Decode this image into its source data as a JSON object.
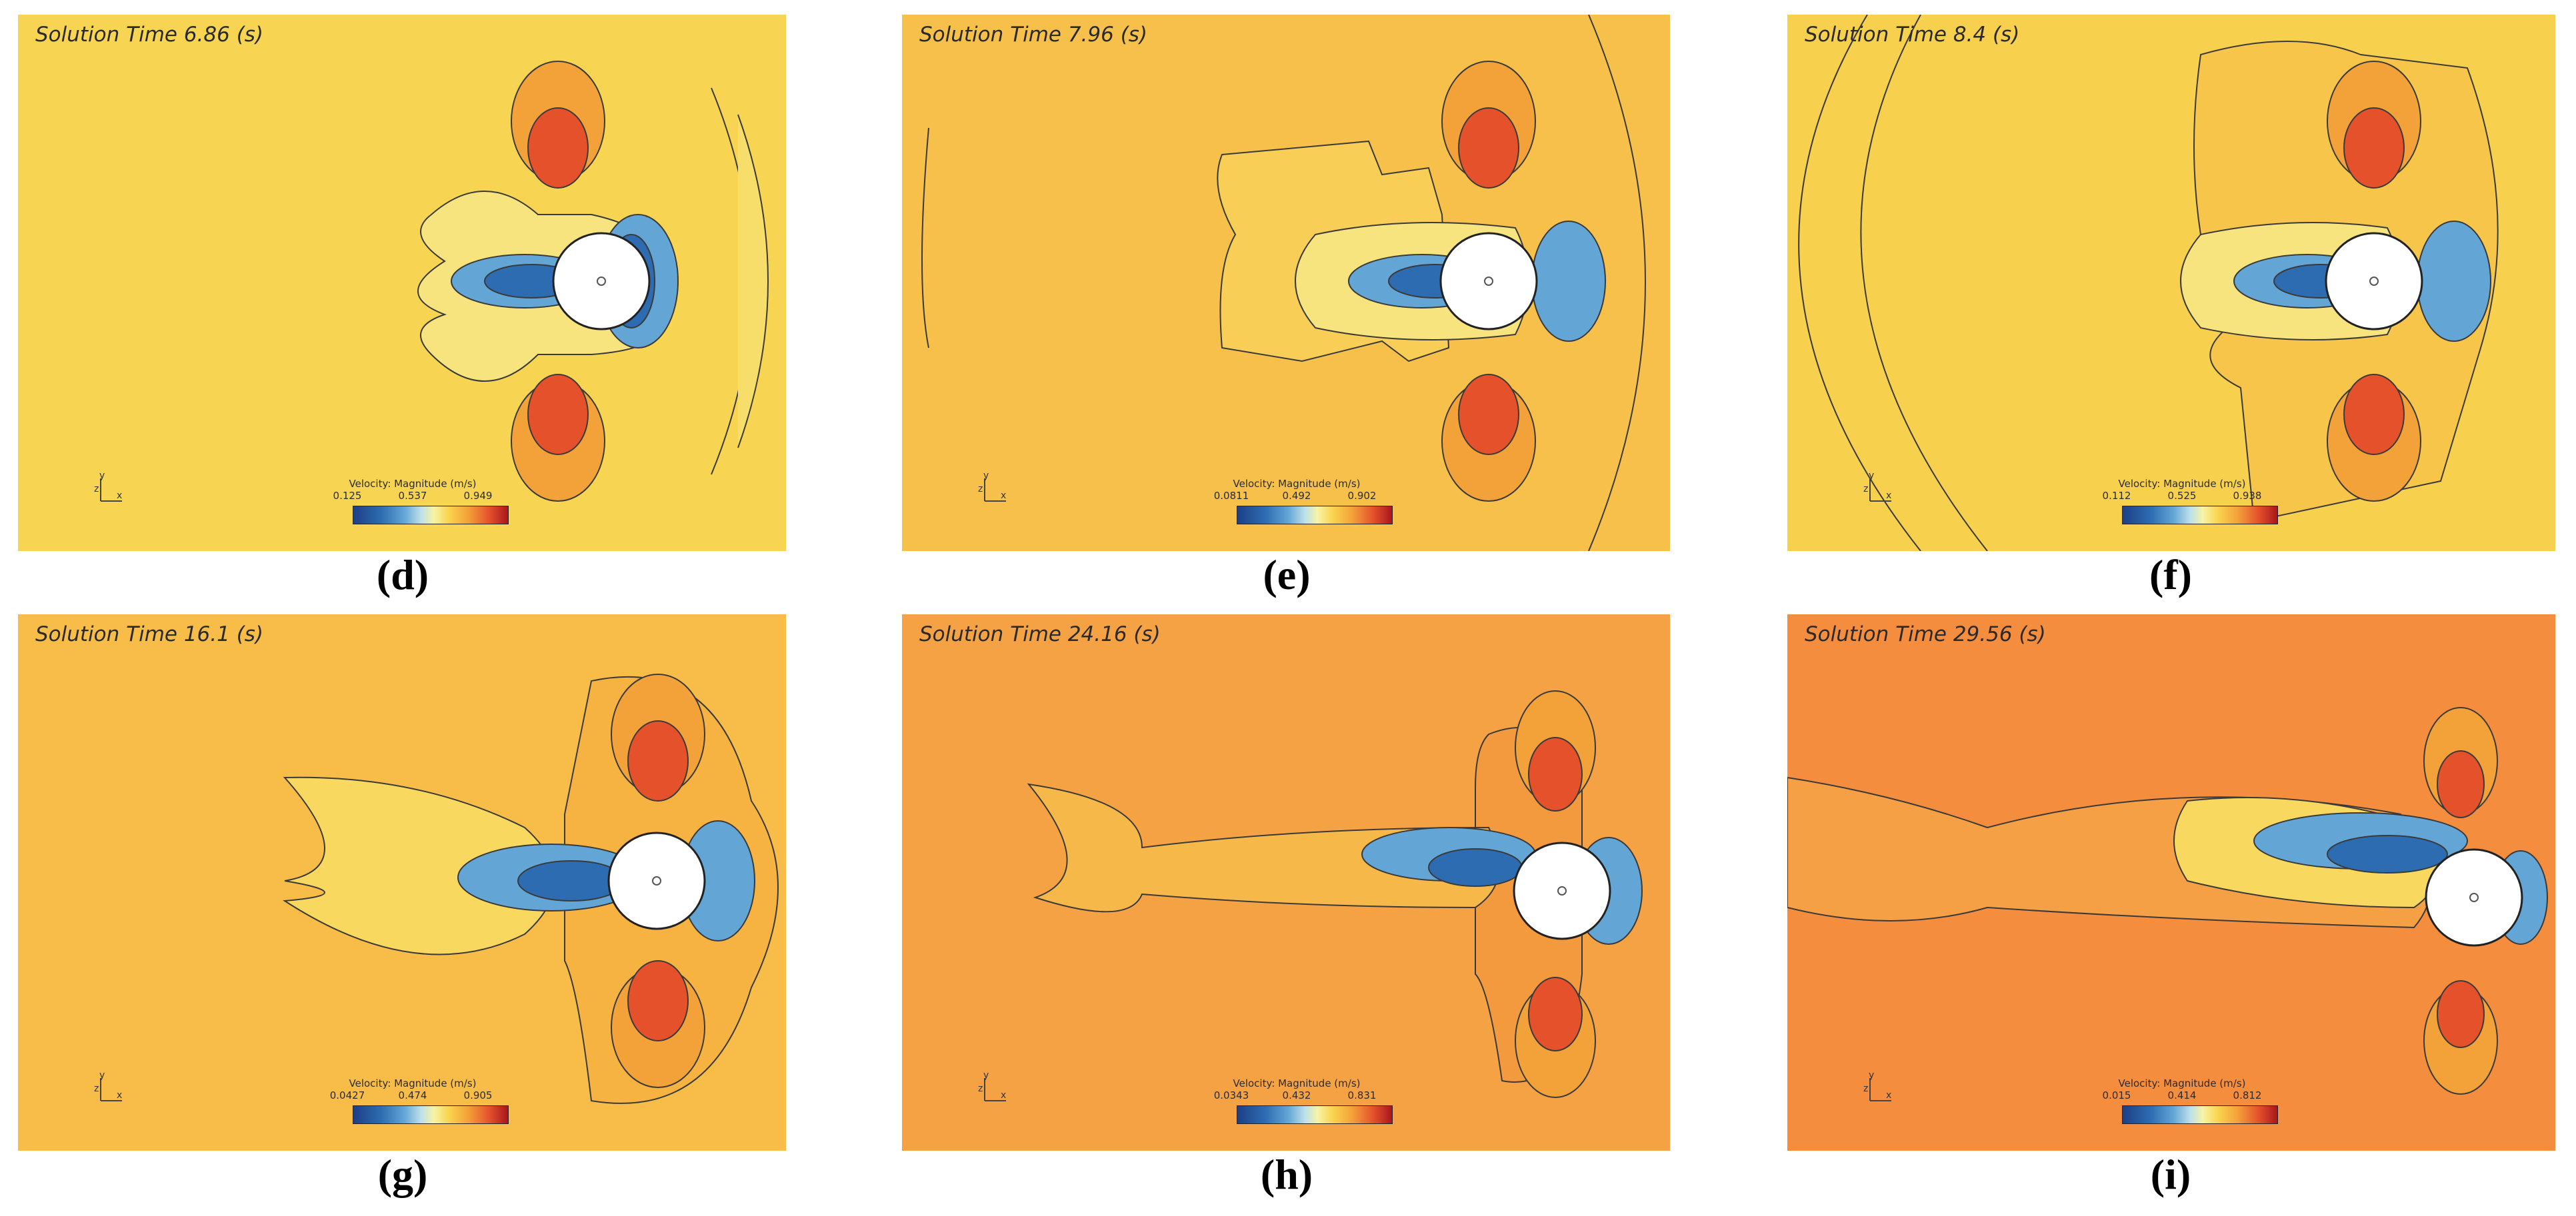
{
  "legend_title": "Velocity: Magnitude (m/s)",
  "panels": [
    {
      "id": "d",
      "time_label": "Solution Time 6.86 (s)",
      "min": "0.125",
      "mid": "0.537",
      "max": "0.949",
      "caption": "(d)",
      "background": "#f7d552"
    },
    {
      "id": "e",
      "time_label": "Solution Time 7.96 (s)",
      "min": "0.0811",
      "mid": "0.492",
      "max": "0.902",
      "caption": "(e)",
      "background": "#f6c04a"
    },
    {
      "id": "f",
      "time_label": "Solution Time 8.4 (s)",
      "min": "0.112",
      "mid": "0.525",
      "max": "0.938",
      "caption": "(f)",
      "background": "#f7d04e"
    },
    {
      "id": "g",
      "time_label": "Solution Time 16.1 (s)",
      "min": "0.0427",
      "mid": "0.474",
      "max": "0.905",
      "caption": "(g)",
      "background": "#f7bd48"
    },
    {
      "id": "h",
      "time_label": "Solution Time 24.16 (s)",
      "min": "0.0343",
      "mid": "0.432",
      "max": "0.831",
      "caption": "(h)",
      "background": "#f5a244"
    },
    {
      "id": "i",
      "time_label": "Solution Time 29.56 (s)",
      "min": "0.015",
      "mid": "0.414",
      "max": "0.812",
      "caption": "(i)",
      "background": "#f58d3e"
    }
  ],
  "colors": {
    "contour_line": "#3a3a3a",
    "low_velocity": "#1d3f86",
    "high_velocity": "#b0251f",
    "cylinder": "#ffffff"
  }
}
